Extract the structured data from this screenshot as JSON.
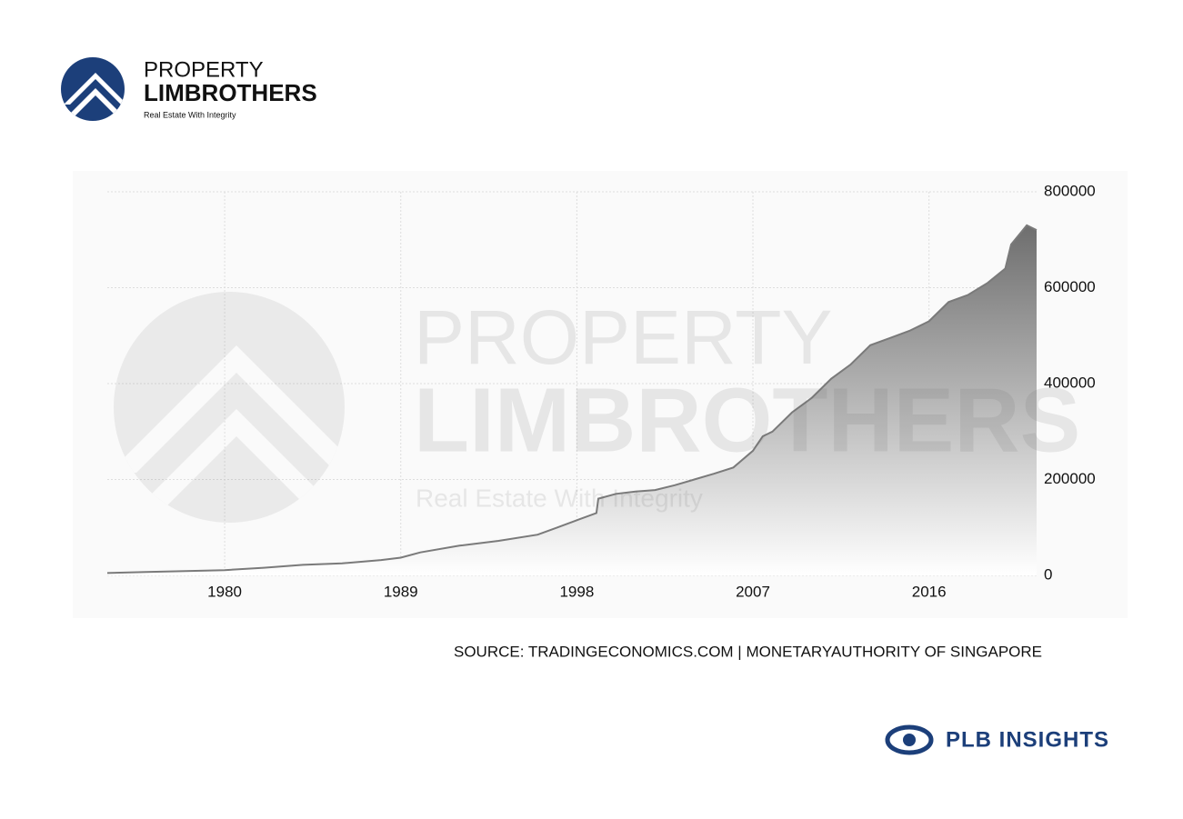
{
  "brand": {
    "line1": "PROPERTY",
    "line2": "LIMBROTHERS",
    "tagline": "Real Estate With Integrity"
  },
  "watermark": {
    "line1": "PROPERTY",
    "line2": "LIMBROTHERS",
    "tagline": "Real Estate With Integrity"
  },
  "chart_data": {
    "type": "area",
    "x": [
      1974,
      1976,
      1978,
      1980,
      1982,
      1984,
      1986,
      1988,
      1989,
      1990,
      1992,
      1994,
      1996,
      1997,
      1998,
      1999,
      1999.1,
      2000,
      2001,
      2002,
      2003,
      2004,
      2005,
      2006,
      2007,
      2007.5,
      2008,
      2009,
      2010,
      2011,
      2012,
      2013,
      2014,
      2015,
      2016,
      2017,
      2018,
      2019,
      2019.9,
      2020.2,
      2021,
      2021.5
    ],
    "values": [
      5000,
      7000,
      9000,
      11000,
      16000,
      22000,
      25000,
      32000,
      37000,
      48000,
      62000,
      72000,
      85000,
      100000,
      115000,
      130000,
      160000,
      170000,
      175000,
      178000,
      188000,
      200000,
      212000,
      225000,
      260000,
      290000,
      300000,
      340000,
      370000,
      410000,
      440000,
      480000,
      495000,
      510000,
      530000,
      570000,
      585000,
      610000,
      640000,
      690000,
      730000,
      720000
    ],
    "color": "#7a7a7a",
    "xlim": [
      1974,
      2021.5
    ],
    "xticks": [
      1980,
      1989,
      1998,
      2007,
      2016
    ],
    "ylim": [
      0,
      800000
    ],
    "yticks": [
      0,
      200000,
      400000,
      600000,
      800000
    ],
    "grid": true
  },
  "source": "SOURCE: TRADINGECONOMICS.COM | MONETARYAUTHORITY OF SINGAPORE",
  "footer": "PLB INSIGHTS"
}
